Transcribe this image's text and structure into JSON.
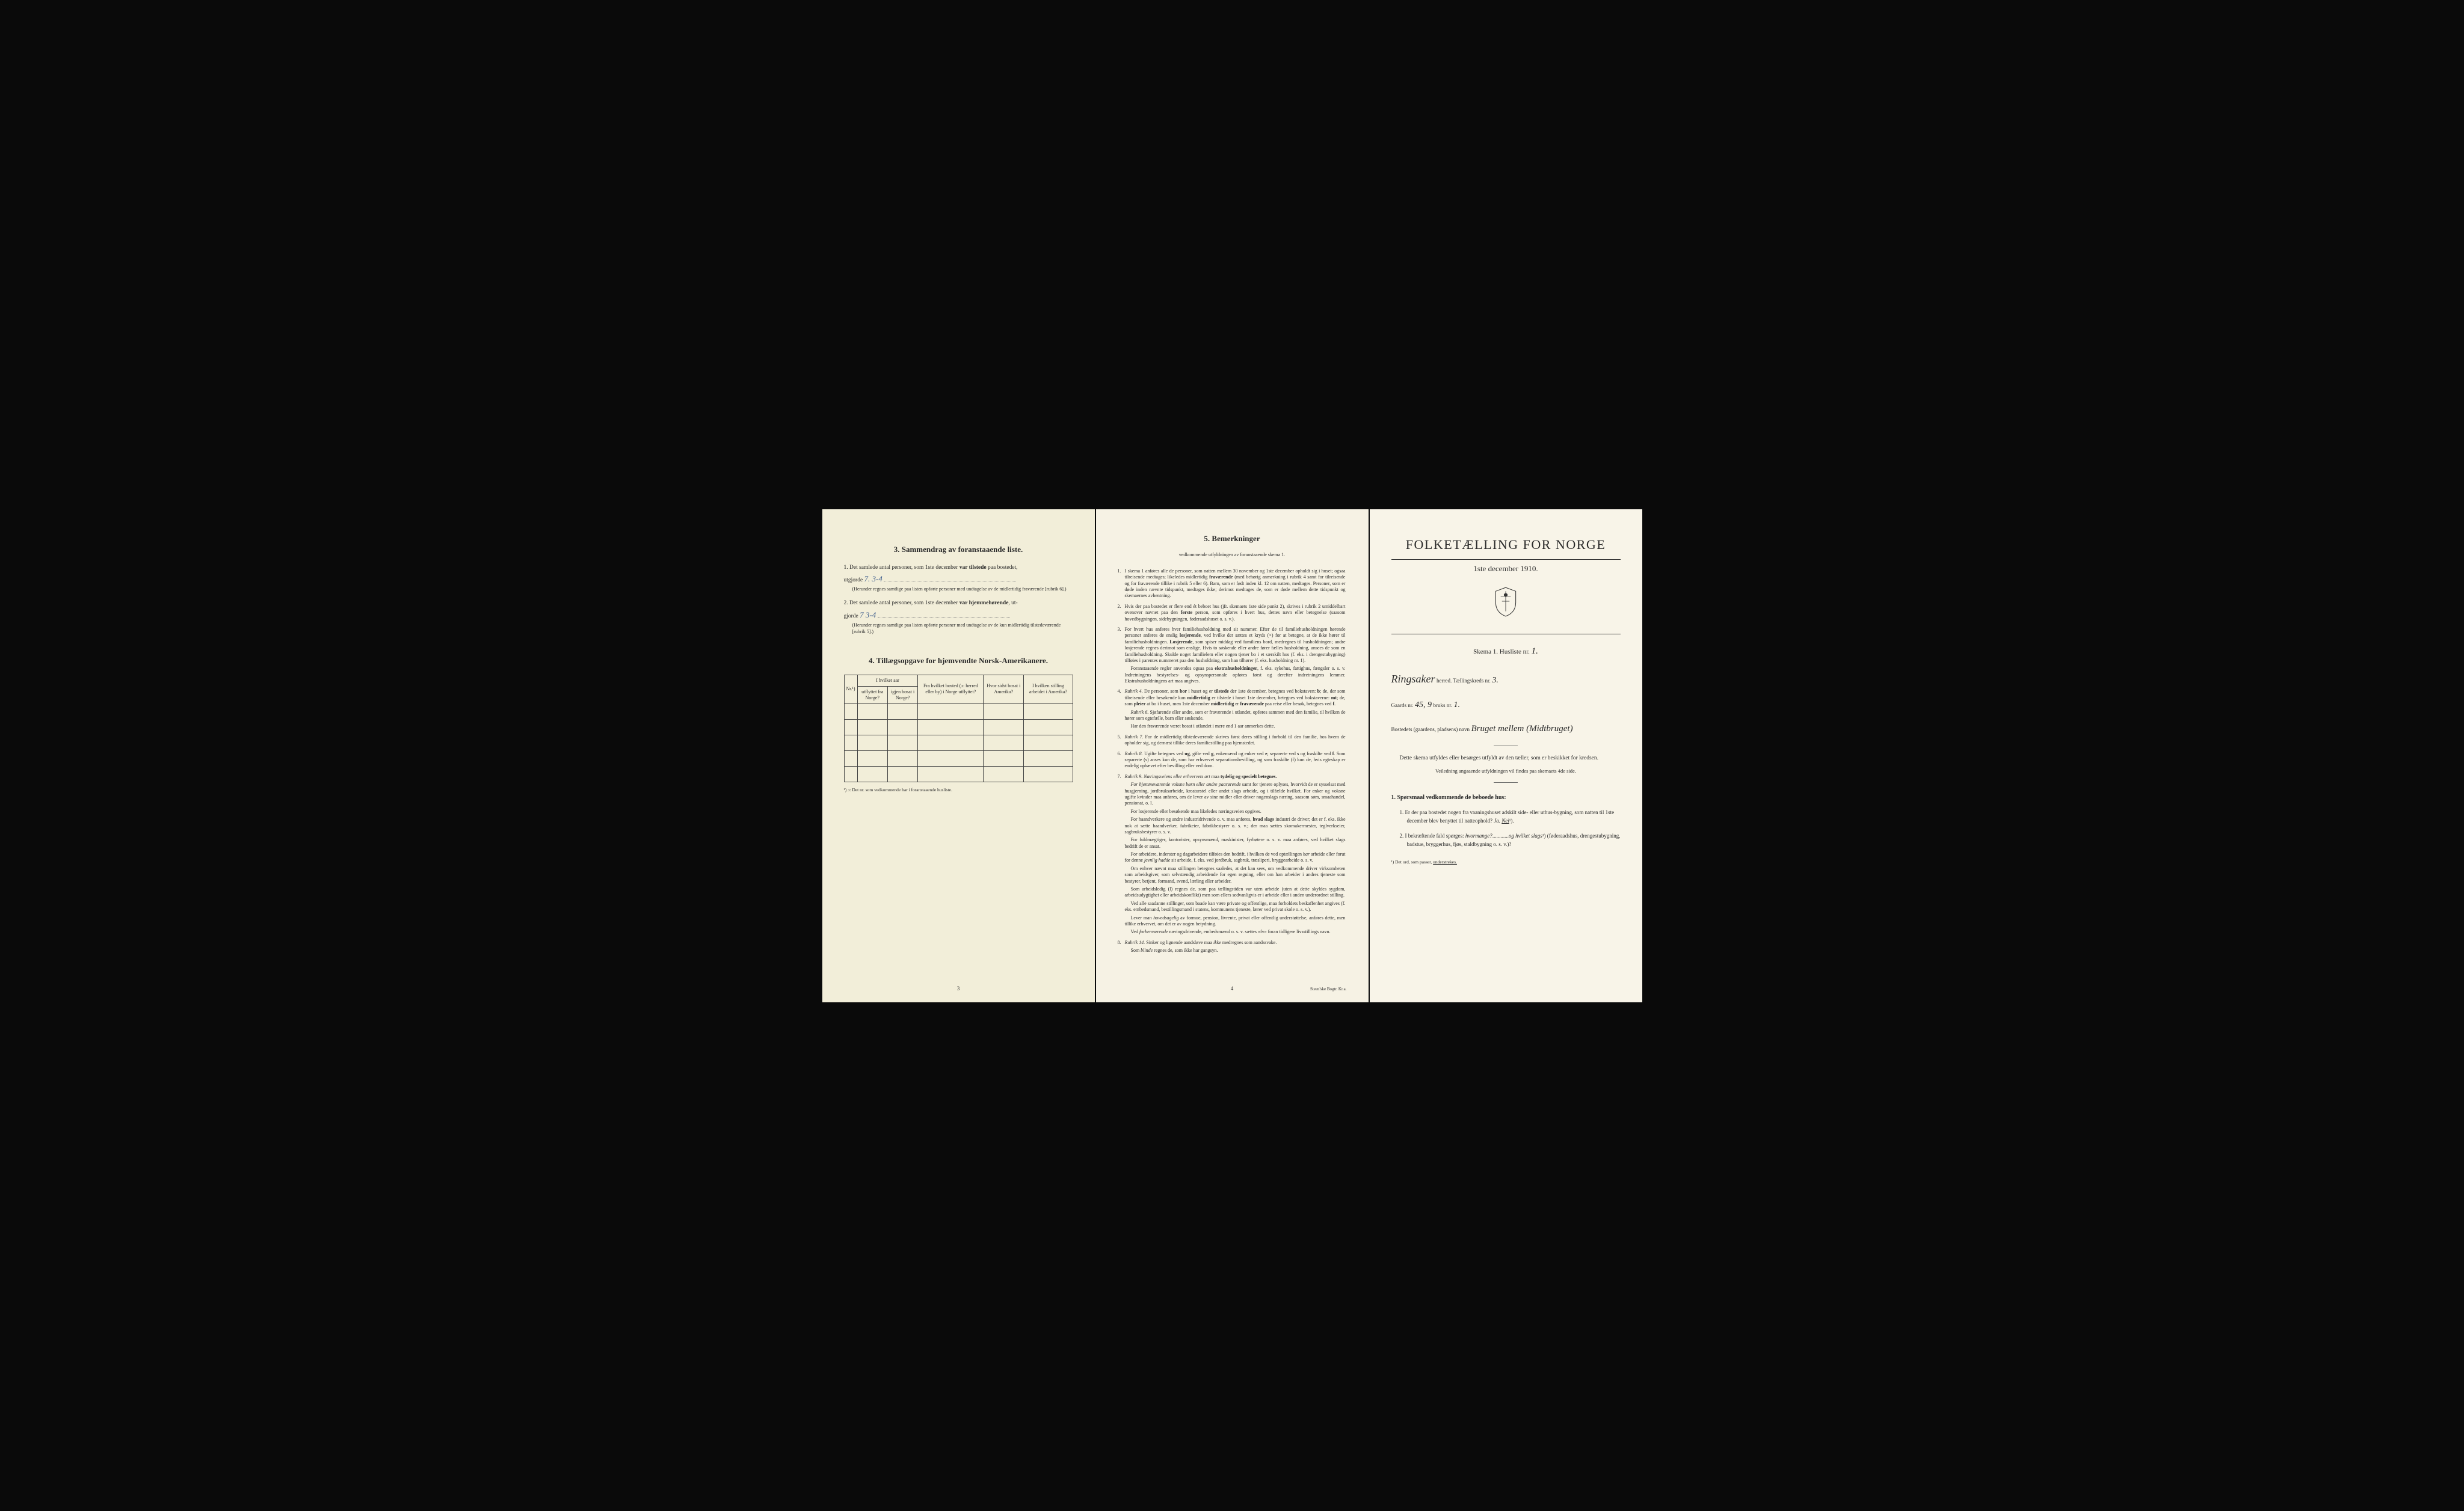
{
  "page1": {
    "section3_title": "3.   Sammendrag av foranstaaende liste.",
    "q1_prefix": "1.  Det samlede antal personer, som 1ste december",
    "q1_bold": "var tilstede",
    "q1_suffix": "paa bostedet,",
    "q1_line2": "utgjorde",
    "q1_hand": "7.   3-4",
    "q1_paren": "(Herunder regnes samtlige paa listen opførte personer med undtagelse av de midlertidig fraværende [rubrik 6].)",
    "q2_prefix": "2.  Det samlede antal personer, som 1ste december",
    "q2_bold": "var hjemmehørende",
    "q2_suffix": ", ut-",
    "q2_line2": "gjorde",
    "q2_hand": "7    3-4",
    "q2_paren": "(Herunder regnes samtlige paa listen opførte personer med undtagelse av de kun midlertidig tilstedeværende [rubrik 5].)",
    "section4_title": "4.  Tillægsopgave for hjemvendte Norsk-Amerikanere.",
    "table": {
      "h_nr": "Nr.¹)",
      "h_col1": "I hvilket aar",
      "h_col1a": "utflyttet fra Norge?",
      "h_col1b": "igjen bosat i Norge?",
      "h_col2": "Fra hvilket bosted (ɔ: herred eller by) i Norge utflyttet?",
      "h_col3": "Hvor sidst bosat i Amerika?",
      "h_col4": "I hvilken stilling arbeidet i Amerika?",
      "rows": 5
    },
    "footnote": "¹) ɔ: Det nr. som vedkommende har i foranstaaende husliste.",
    "pagenum": "3"
  },
  "page2": {
    "title": "5.   Bemerkninger",
    "subtitle": "vedkommende utfyldningen av foranstaaende skema 1.",
    "items": [
      {
        "n": "1.",
        "body": "I skema 1 anføres alle de personer, som natten mellem 30 november og 1ste december opholdt sig i huset; ogsaa tilreisende medtages; likeledes midlertidig <b>fraværende</b> (med behørig anmerkning i rubrik 4 samt for tilreisende og for fraværende tillike i rubrik 5 eller 6). Barn, som er født inden kl. 12 om natten, medtages. Personer, som er døde inden nævnte tidspunkt, medtages ikke; derimot medtages de, som er døde mellem dette tidspunkt og skemaernes avhentning."
      },
      {
        "n": "2.",
        "body": "Hvis der paa bostedet er flere end ét beboet hus (jfr. skemaets 1ste side punkt 2), skrives i rubrik 2 umiddelbart ovenover navnet paa den <b>første</b> person, som opføres i hvert hus, dettes navn eller betegnelse (saasom hovedbygningen, sidebygningen, føderaadshuset o. s. v.)."
      },
      {
        "n": "3.",
        "body": "For hvert hus anføres hver familiehusholdning med sit nummer. Efter de til familiehusholdningen hørende personer anføres de enslig <b>losjerende</b>, ved hvilke der sættes et kryds (×) for at betegne, at de ikke hører til familiehusholdningen. <b>Losjerende</b>, som spiser middag ved familiens bord, medregnes til husholdningen; andre losjerende regnes derimot som enslige. Hvis to søskende eller andre fører fælles husholdning, ansees de som en familiehusholdning. Skulde noget familielem eller nogen tjener bo i et særskilt hus (f. eks. i drengestubygning) tilføies i parentes nummeret paa den husholdning, som han tilhører (f. eks. husholdning nr. 1).",
        "paras": [
          "Foranstaaende regler anvendes ogsaa paa <b>ekstrahusholdninger</b>, f. eks. sykehus, fattighus, fængsler o. s. v. Indretningens bestyrelses- og opsynspersonale opføres først og derefter indretningens lemmer. Ekstrahusholdningens art maa angives."
        ]
      },
      {
        "n": "4.",
        "body": "<i>Rubrik 4.</i> De personer, som <b>bor</b> i huset og er <b>tilstede</b> der 1ste december, betegnes ved bokstaven: <b>b</b>; de, der som tilreisende eller besøkende kun <b>midlertidig</b> er tilstede i huset 1ste december, betegnes ved bokstaverne: <b>mt</b>; de, som <b>pleier</b> at bo i huset, men 1ste december <b>midlertidig</b> er <b>fraværende</b> paa reise eller besøk, betegnes ved <b>f</b>.",
        "paras": [
          "<i>Rubrik 6.</i> Sjøfarende eller andre, som er fraværende i utlandet, opføres sammen med den familie, til hvilken de hører som egtefælle, barn eller søskende.",
          "Har den fraværende været bosat i utlandet i mere end 1 aar anmerkes dette."
        ]
      },
      {
        "n": "5.",
        "body": "<i>Rubrik 7.</i> For de midlertidig tilstedeværende skrives først deres stilling i forhold til den familie, hos hvem de opholder sig, og dernæst tillike deres familiestilling paa hjemstedet."
      },
      {
        "n": "6.",
        "body": "<i>Rubrik 8.</i> Ugifte betegnes ved <b>ug</b>, gifte ved <b>g</b>, enkemænd og enker ved <b>e</b>, separerte ved <b>s</b> og fraskilte ved <b>f</b>. Som separerte (s) anses kun de, som har erhvervet separationsbevilling, og som fraskilte (f) kun de, hvis egteskap er endelig ophævet efter bevilling eller ved dom."
      },
      {
        "n": "7.",
        "body": "<i>Rubrik 9.</i> <i>Næringsveiens eller erhvervets art</i> maa <b>tydelig og specielt betegnes.</b>",
        "paras": [
          "<i>For hjemmeværende voksne børn eller andre paarørende</i> samt for tjenere oplyses, hvorvidt de er sysselsat med husgjerning, jordbruksarbeide, kreaturstel eller andet slags arbeide, og i tilfælde hvilket. For enker og voksne ugifte kvinder maa anføres, om de lever av sine midler eller driver nogenslags næring, saasom søm, smaahandel, pensionat, o. l.",
          "For losjerende eller besøkende maa likeledes næringsveien opgives.",
          "For haandverkere og andre industridrivende o. v. maa anføres, <b>hvad slags</b> industri de driver; det er f. eks. ikke nok at sætte haandverker, fabrikeier, fabrikbestyrer o. s. v.; der maa sættes skomakermester, teglverkseier, sagbruksbestyrer o. s. v.",
          "For fuldmægtiger, kontorister, opsynsmænd, maskinister, fyrbøtere o. s. v. maa anføres, ved hvilket slags bedrift de er ansat.",
          "For arbeidere, inderster og dagarbeidere tilføies den bedrift, i hvilken de ved optællingen <i>har</i> arbeide eller forut for denne <i>jevnlig hadde</i> sit arbeide, f. eks. ved jordbruk, sagbruk, træsliperi, bryggearbeide o. s. v.",
          "Om enhver nævnt maa stillingen betegnes saaledes, at det kan sees, om vedkommende driver virksomheten som arbeidsgiver, som selvstændig arbeidende for egen regning, eller om han arbeider i andres tjeneste som bestyrer, betjent, formand, svend, lærling eller arbeider.",
          "Som arbeidsledig (l) regnes de, som paa tællingstiden var uten arbeide (uten at dette skyldes sygdom, arbeidsudygtighet eller arbeidskonflikt) men som ellers sedvanligvis er i arbeide eller i anden underordnet stilling.",
          "Ved alle saadanne stillinger, som baade kan være private og offentlige, maa forholdets beskaffenhet angives (f. eks. embedsmand, bestillingsmand i statens, kommunens tjeneste, lærer ved privat skole o. s. v.).",
          "Lever man <i>hovedsagelig</i> av formue, pension, livrente, privat eller offentlig understøttelse, anføres dette, men tillike erhvervet, om det er av nogen betydning.",
          "Ved <i>forhenværende</i> næringsdrivende, embedsmænd o. s. v. sættes «fv» foran tidligere livsstillings navn."
        ]
      },
      {
        "n": "8.",
        "body": "<i>Rubrik 14.</i> Sinker og lignende aandsløve maa <i>ikke</i> medregnes som aandssvake.",
        "paras": [
          "Som <i>blinde</i> regnes de, som ikke har gangsyn."
        ]
      }
    ],
    "pagenum": "4",
    "imprint": "Steen'ske Bogtr. Kr.a."
  },
  "page3": {
    "main_title": "FOLKETÆLLING FOR NORGE",
    "sub_title": "1ste december 1910.",
    "schema": "Skema 1.  Husliste nr.",
    "husliste_nr": "1.",
    "herred_name": "Ringsaker",
    "herred_label": "herred.  Tællingskreds nr.",
    "kreds_nr": "3.",
    "gaards_label": "Gaards nr.",
    "gaards_nr": "45, 9",
    "bruks_label": "bruks nr.",
    "bruks_nr": "1.",
    "bosted_label": "Bostedets (gaardens, pladsens) navn",
    "bosted_name": "Bruget mellem (Midtbruget)",
    "intro1": "Dette skema utfyldes eller besørges utfyldt av den tæller, som er beskikket for kredsen.",
    "intro2": "Veiledning angaaende utfyldningen vil findes paa skemaets 4de side.",
    "sec1_title": "1. Spørsmaal vedkommende de beboede hus:",
    "q1": "1.  Er der paa bostedet nogen fra vaaningshuset adskilt side- eller uthus-bygning, som natten til 1ste december blev benyttet til natteophold?    <i>Ja.    <u>Nei</u></i>¹).",
    "q2": "2.  I bekræftende fald spørges: <i>hvormange?</i>............<i>og hvilket slags</i>¹) (føderaadshus, drengestubygning, badstue, bryggerhus, fjøs, staldbygning o. s. v.)?",
    "note": "¹) Det ord, som passer, <u>understrekes.</u>"
  },
  "colors": {
    "paper1": "#f2eed9",
    "paper2": "#f6f2e4",
    "paper3": "#f8f4e8",
    "ink": "#2a2a2a",
    "hand_blue": "#3a5a8a",
    "bg": "#0a0a0a"
  }
}
